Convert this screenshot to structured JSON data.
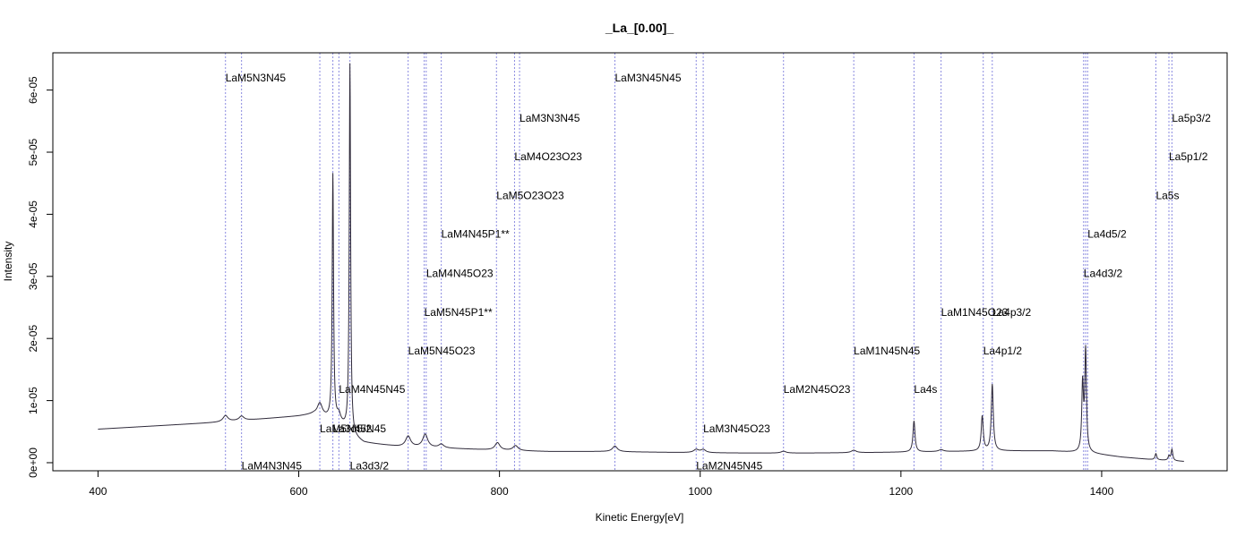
{
  "chart_data": {
    "type": "line",
    "title": "_La_[0.00]_",
    "xlabel": "Kinetic Energy[eV]",
    "ylabel": "Intensity",
    "xlim": [
      355,
      1525
    ],
    "ylim": [
      -1.3e-06,
      6.6e-05
    ],
    "x_ticks": [
      {
        "value": 400,
        "label": "400"
      },
      {
        "value": 600,
        "label": "600"
      },
      {
        "value": 800,
        "label": "800"
      },
      {
        "value": 1000,
        "label": "1000"
      },
      {
        "value": 1200,
        "label": "1200"
      },
      {
        "value": 1400,
        "label": "1400"
      }
    ],
    "y_ticks": [
      {
        "value": 0,
        "label": "0e+00"
      },
      {
        "value": 1e-05,
        "label": "1e-05"
      },
      {
        "value": 2e-05,
        "label": "2e-05"
      },
      {
        "value": 3e-05,
        "label": "3e-05"
      },
      {
        "value": 4e-05,
        "label": "4e-05"
      },
      {
        "value": 5e-05,
        "label": "5e-05"
      },
      {
        "value": 6e-05,
        "label": "6e-05"
      }
    ],
    "colors": {
      "line": "#2f2a3a",
      "marker": "#8a8ae0",
      "frame": "#000000"
    },
    "baseline_points": [
      [
        400,
        5.4e-06
      ],
      [
        520,
        6.5e-06
      ],
      [
        600,
        7.5e-06
      ],
      [
        615,
        7.8e-06
      ],
      [
        640,
        6.5e-06
      ],
      [
        655,
        4e-06
      ],
      [
        665,
        3.2e-06
      ],
      [
        700,
        2.6e-06
      ],
      [
        750,
        2.3e-06
      ],
      [
        800,
        2e-06
      ],
      [
        850,
        1.8e-06
      ],
      [
        900,
        1.8e-06
      ],
      [
        950,
        1.7e-06
      ],
      [
        1000,
        1.6e-06
      ],
      [
        1050,
        1.55e-06
      ],
      [
        1100,
        1.55e-06
      ],
      [
        1150,
        1.6e-06
      ],
      [
        1200,
        1.7e-06
      ],
      [
        1250,
        1.8e-06
      ],
      [
        1300,
        1.9e-06
      ],
      [
        1350,
        1.9e-06
      ],
      [
        1390,
        1.5e-06
      ],
      [
        1420,
        9e-07
      ],
      [
        1450,
        5e-07
      ],
      [
        1482,
        2e-07
      ]
    ],
    "peaks": [
      {
        "x": 527,
        "height": 1e-06,
        "width": 3
      },
      {
        "x": 543,
        "height": 7e-07,
        "width": 3
      },
      {
        "x": 621,
        "height": 2e-06,
        "width": 3
      },
      {
        "x": 634,
        "height": 3.95e-05,
        "width": 0.8
      },
      {
        "x": 640,
        "height": 1e-06,
        "width": 2
      },
      {
        "x": 651,
        "height": 5.95e-05,
        "width": 0.8
      },
      {
        "x": 709,
        "height": 1.7e-06,
        "width": 3
      },
      {
        "x": 726,
        "height": 2.1e-06,
        "width": 3
      },
      {
        "x": 742,
        "height": 6e-07,
        "width": 3
      },
      {
        "x": 798,
        "height": 1.2e-06,
        "width": 3
      },
      {
        "x": 816,
        "height": 8e-07,
        "width": 3
      },
      {
        "x": 915,
        "height": 9e-07,
        "width": 3
      },
      {
        "x": 996,
        "height": 5e-07,
        "width": 3
      },
      {
        "x": 1003,
        "height": 5e-07,
        "width": 3
      },
      {
        "x": 1083,
        "height": 3e-07,
        "width": 3
      },
      {
        "x": 1153,
        "height": 4e-07,
        "width": 3
      },
      {
        "x": 1213,
        "height": 5e-06,
        "width": 1.2
      },
      {
        "x": 1240,
        "height": 3e-07,
        "width": 3
      },
      {
        "x": 1281,
        "height": 5.6e-06,
        "width": 1.2
      },
      {
        "x": 1291,
        "height": 1.07e-05,
        "width": 1.2
      },
      {
        "x": 1381,
        "height": 1.08e-05,
        "width": 1.0
      },
      {
        "x": 1384,
        "height": 1.63e-05,
        "width": 1.0
      },
      {
        "x": 1454,
        "height": 1e-06,
        "width": 1.0
      },
      {
        "x": 1467,
        "height": 7e-07,
        "width": 1.0
      },
      {
        "x": 1470,
        "height": 1.8e-06,
        "width": 1.0
      }
    ],
    "markers": [
      527,
      543,
      621,
      634,
      640,
      651,
      709,
      725,
      727,
      742,
      797,
      815,
      820,
      915,
      996,
      1003,
      1083,
      1153,
      1213,
      1240,
      1282,
      1291,
      1382,
      1384,
      1386,
      1454,
      1467,
      1470
    ],
    "annotations": [
      {
        "label": "LaM5N3N45",
        "x": 527,
        "y": 6.2e-05
      },
      {
        "label": "LaM4N3N45",
        "x": 543,
        "y": -5e-07
      },
      {
        "label": "LaM5N45N45",
        "x": 621,
        "y": 5.5e-06
      },
      {
        "label": "La3d5/2",
        "x": 634,
        "y": 5.5e-06
      },
      {
        "label": "LaM4N45N45",
        "x": 640,
        "y": 1.18e-05
      },
      {
        "label": "La3d3/2",
        "x": 651,
        "y": -5e-07
      },
      {
        "label": "LaM5N45O23",
        "x": 709,
        "y": 1.8e-05
      },
      {
        "label": "LaM5N45P1**",
        "x": 725,
        "y": 2.42e-05
      },
      {
        "label": "LaM4N45O23",
        "x": 727,
        "y": 3.05e-05
      },
      {
        "label": "LaM4N45P1**",
        "x": 742,
        "y": 3.68e-05
      },
      {
        "label": "LaM5O23O23",
        "x": 797,
        "y": 4.3e-05
      },
      {
        "label": "LaM4O23O23",
        "x": 815,
        "y": 4.93e-05
      },
      {
        "label": "LaM3N3N45",
        "x": 820,
        "y": 5.55e-05
      },
      {
        "label": "LaM3N45N45",
        "x": 915,
        "y": 6.2e-05
      },
      {
        "label": "LaM2N45N45",
        "x": 996,
        "y": -5e-07
      },
      {
        "label": "LaM3N45O23",
        "x": 1003,
        "y": 5.5e-06
      },
      {
        "label": "LaM2N45O23",
        "x": 1083,
        "y": 1.18e-05
      },
      {
        "label": "LaM1N45N45",
        "x": 1153,
        "y": 1.8e-05
      },
      {
        "label": "La4s",
        "x": 1213,
        "y": 1.18e-05
      },
      {
        "label": "LaM1N45O23",
        "x": 1240,
        "y": 2.42e-05
      },
      {
        "label": "La4p1/2",
        "x": 1282,
        "y": 1.8e-05
      },
      {
        "label": "La4p3/2",
        "x": 1291,
        "y": 2.42e-05
      },
      {
        "label": "La4d3/2",
        "x": 1382,
        "y": 3.05e-05
      },
      {
        "label": "La4d5/2",
        "x": 1386,
        "y": 3.68e-05
      },
      {
        "label": "La5s",
        "x": 1454,
        "y": 4.3e-05
      },
      {
        "label": "La5p1/2",
        "x": 1467,
        "y": 4.93e-05
      },
      {
        "label": "La5p3/2",
        "x": 1470,
        "y": 5.55e-05
      }
    ]
  }
}
